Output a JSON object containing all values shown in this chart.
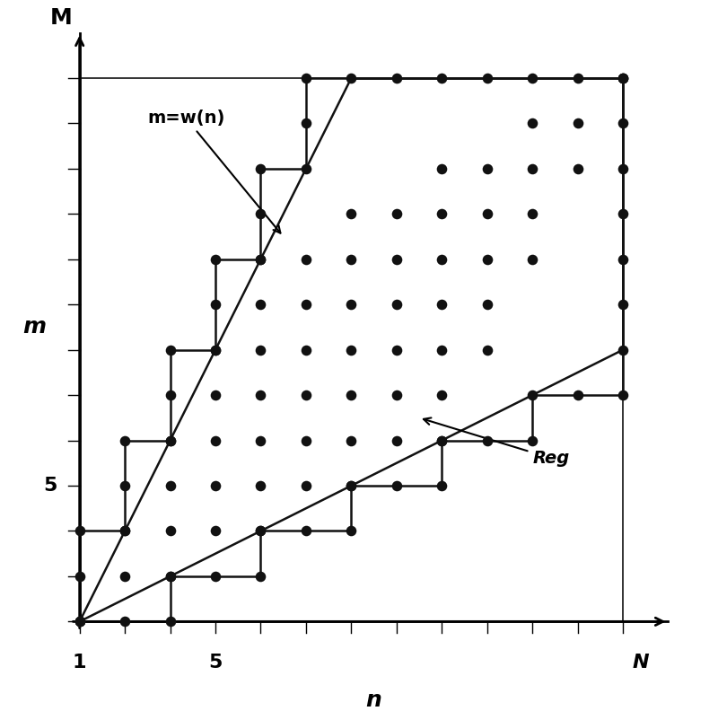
{
  "xlabel": "n",
  "ylabel": "m",
  "dot_color": "#111111",
  "line_color": "#111111",
  "background": "#ffffff",
  "annotation_wn": "m=w(n)",
  "annotation_reg": "Reg",
  "n_max": 13,
  "m_max": 13,
  "label_5_n": 4,
  "label_5_m": 4
}
